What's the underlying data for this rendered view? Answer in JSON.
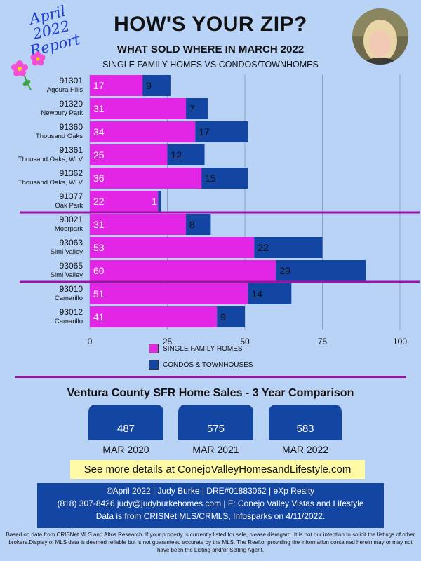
{
  "badge": {
    "line1": "April 2022",
    "line2": "Report"
  },
  "header": {
    "title": "HOW'S YOUR ZIP?",
    "subtitle": "WHAT SOLD WHERE IN MARCH 2022",
    "subsubtitle": "SINGLE FAMILY HOMES VS CONDOS/TOWNHOMES"
  },
  "colors": {
    "sfh": "#e325e6",
    "condo": "#1346a3",
    "divider": "#a010a8",
    "background": "#b9d3f7"
  },
  "chart_data": {
    "type": "bar",
    "orientation": "horizontal",
    "stacked": true,
    "categories": [
      {
        "zip": "91301",
        "city": "Agoura Hills"
      },
      {
        "zip": "91320",
        "city": "Newbury Park"
      },
      {
        "zip": "91360",
        "city": "Thousand Oaks"
      },
      {
        "zip": "91361",
        "city": "Thousand Oaks, WLV"
      },
      {
        "zip": "91362",
        "city": "Thousand Oaks, WLV"
      },
      {
        "zip": "91377",
        "city": "Oak Park"
      },
      {
        "zip": "93021",
        "city": "Moorpark"
      },
      {
        "zip": "93063",
        "city": "Simi Valley"
      },
      {
        "zip": "93065",
        "city": "Simi Valley"
      },
      {
        "zip": "93010",
        "city": "Camarillo"
      },
      {
        "zip": "93012",
        "city": "Camarillo"
      }
    ],
    "series": [
      {
        "name": "SINGLE FAMILY HOMES",
        "values": [
          17,
          31,
          34,
          25,
          36,
          22,
          31,
          53,
          60,
          51,
          41
        ]
      },
      {
        "name": "CONDOS & TOWNHOUSES",
        "values": [
          9,
          7,
          17,
          12,
          15,
          1,
          8,
          22,
          29,
          14,
          9
        ]
      }
    ],
    "xlim": [
      0,
      100
    ],
    "xticks": [
      0,
      25,
      50,
      75,
      100
    ],
    "group_dividers_after": [
      "91377",
      "93065"
    ],
    "legend_position": "bottom-center"
  },
  "comparison": {
    "title": "Ventura County SFR Home Sales - 3 Year Comparison",
    "items": [
      {
        "value": "487",
        "label": "MAR 2020"
      },
      {
        "value": "575",
        "label": "MAR 2021"
      },
      {
        "value": "583",
        "label": "MAR 2022"
      }
    ]
  },
  "link_text": "See more details at ConejoValleyHomesandLifestyle.com",
  "footer": {
    "line1": "©April 2022  |  Judy Burke  |  DRE#01883062  |  eXp Realty",
    "line2": "(818) 307-8426  judy@judyburkehomes.com | F: Conejo Valley Vistas and Lifestyle",
    "line3": "Data is from CRISNet MLS/CRMLS, Infosparks on 4/11/2022."
  },
  "disclaimer": "Based on data from CRISNet MLS and Altos Research. If your property is currently listed for sale, please disregard. It is not our intention to solicit the listings of other brokers.Display of MLS data is deemed reliable but is not guaranteed accurate by the MLS. The Realtor providing the information contained herein may or may not have been the Listing and/or Selling Agent."
}
